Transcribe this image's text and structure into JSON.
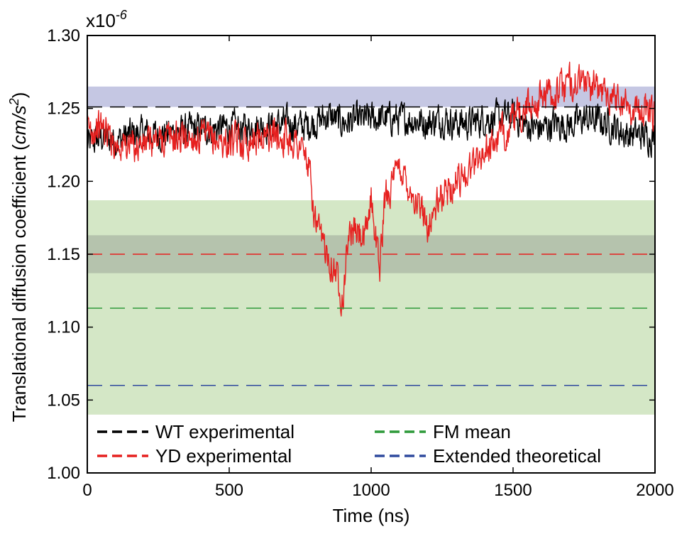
{
  "chart_data": {
    "type": "line",
    "xlabel": "Time (ns)",
    "ylabel_prefix": "Translational diffusion coefficient (",
    "ylabel_unit": "cm/s",
    "ylabel_exp": "2",
    "ylabel_suffix": ")",
    "y_multiplier_base": "x10",
    "y_multiplier_exp": "-6",
    "xlim": [
      0,
      2000
    ],
    "ylim": [
      1.0,
      1.3
    ],
    "xticks": [
      0,
      500,
      1000,
      1500,
      2000
    ],
    "xtick_labels": [
      "0",
      "500",
      "1000",
      "1500",
      "2000"
    ],
    "yticks": [
      1.0,
      1.05,
      1.1,
      1.15,
      1.2,
      1.25,
      1.3
    ],
    "ytick_labels": [
      "1.00",
      "1.05",
      "1.10",
      "1.15",
      "1.20",
      "1.25",
      "1.30"
    ],
    "grid": false,
    "legend_position": "bottom",
    "bands": [
      {
        "color": "#d4e7c6",
        "y_range": [
          1.04,
          1.187
        ]
      },
      {
        "color": "#b5c3ad",
        "y_range": [
          1.137,
          1.163
        ]
      },
      {
        "color": "#c5c7e3",
        "y_range": [
          1.251,
          1.265
        ]
      }
    ],
    "reference_lines": [
      {
        "name": "WT experimental",
        "value": 1.251,
        "color": "#000000"
      },
      {
        "name": "YD experimental",
        "value": 1.15,
        "color": "#e6201f"
      },
      {
        "name": "FM mean",
        "value": 1.113,
        "color": "#2e9a3a"
      },
      {
        "name": "Extended theoretical",
        "value": 1.06,
        "color": "#2f4a9e"
      }
    ],
    "series": [
      {
        "name": "WT experimental",
        "color": "#000000",
        "x": [
          0,
          50,
          100,
          150,
          200,
          250,
          300,
          350,
          400,
          450,
          500,
          550,
          600,
          650,
          700,
          750,
          800,
          850,
          900,
          950,
          1000,
          1050,
          1100,
          1150,
          1200,
          1250,
          1300,
          1350,
          1400,
          1450,
          1500,
          1550,
          1600,
          1650,
          1700,
          1750,
          1800,
          1850,
          1900,
          1950,
          2000
        ],
        "y": [
          1.225,
          1.23,
          1.228,
          1.232,
          1.233,
          1.232,
          1.233,
          1.235,
          1.236,
          1.236,
          1.237,
          1.236,
          1.238,
          1.238,
          1.24,
          1.238,
          1.24,
          1.245,
          1.24,
          1.242,
          1.243,
          1.243,
          1.243,
          1.242,
          1.24,
          1.243,
          1.24,
          1.24,
          1.243,
          1.243,
          1.245,
          1.238,
          1.236,
          1.24,
          1.238,
          1.243,
          1.242,
          1.238,
          1.232,
          1.232,
          1.23
        ],
        "noise": 0.017
      },
      {
        "name": "YD experimental",
        "color": "#e6201f",
        "x": [
          0,
          50,
          100,
          150,
          200,
          250,
          300,
          350,
          400,
          450,
          500,
          550,
          600,
          650,
          700,
          750,
          780,
          800,
          820,
          850,
          880,
          900,
          920,
          950,
          980,
          1000,
          1030,
          1050,
          1080,
          1100,
          1150,
          1200,
          1250,
          1300,
          1350,
          1400,
          1450,
          1500,
          1550,
          1600,
          1650,
          1700,
          1750,
          1800,
          1850,
          1900,
          1950,
          2000
        ],
        "y": [
          1.235,
          1.238,
          1.226,
          1.225,
          1.225,
          1.228,
          1.23,
          1.23,
          1.23,
          1.228,
          1.226,
          1.228,
          1.23,
          1.232,
          1.23,
          1.225,
          1.21,
          1.175,
          1.16,
          1.15,
          1.135,
          1.12,
          1.165,
          1.165,
          1.16,
          1.19,
          1.14,
          1.19,
          1.2,
          1.21,
          1.19,
          1.17,
          1.19,
          1.2,
          1.21,
          1.22,
          1.23,
          1.24,
          1.25,
          1.258,
          1.26,
          1.268,
          1.268,
          1.262,
          1.26,
          1.252,
          1.248,
          1.245
        ],
        "noise": 0.018
      }
    ]
  }
}
